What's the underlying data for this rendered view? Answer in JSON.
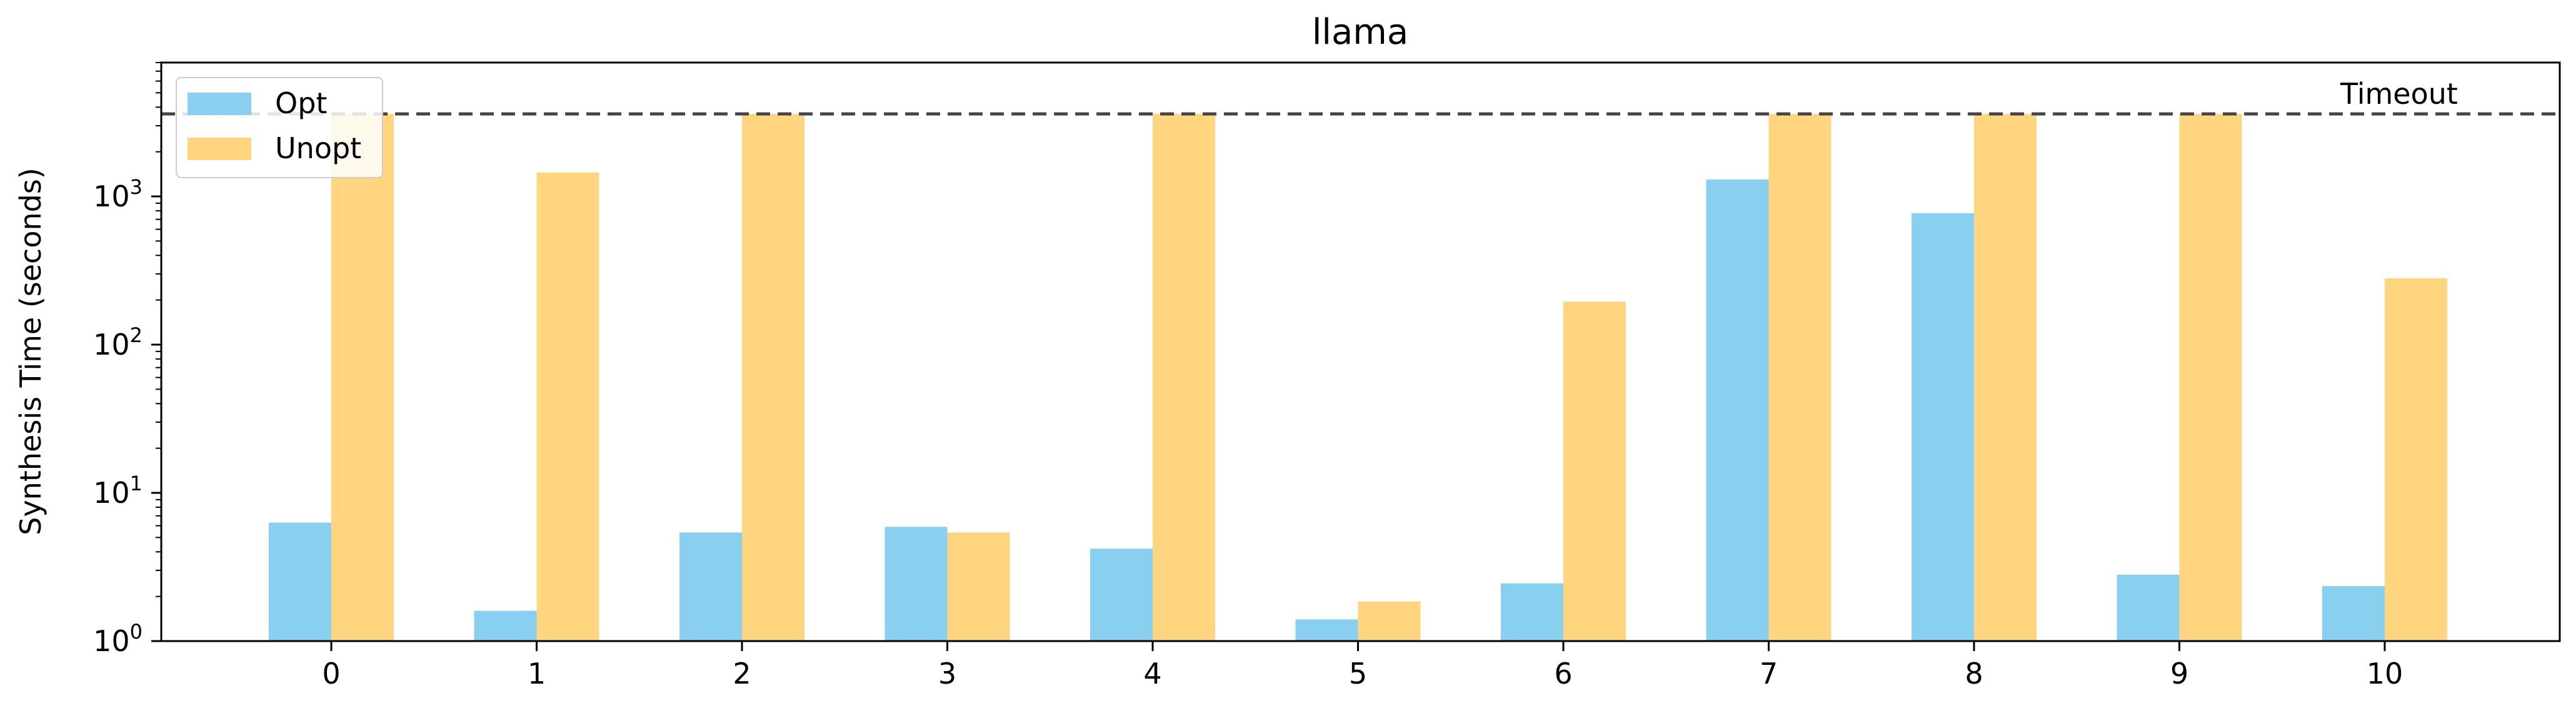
{
  "chart_data": {
    "type": "bar",
    "title": "llama",
    "xlabel": "",
    "ylabel": "Synthesis Time (seconds)",
    "yscale": "log",
    "ylim": [
      1,
      8000
    ],
    "categories": [
      "0",
      "1",
      "2",
      "3",
      "4",
      "5",
      "6",
      "7",
      "8",
      "9",
      "10"
    ],
    "series": [
      {
        "name": "Opt",
        "color": "#89CFF0",
        "values": [
          6.3,
          1.6,
          5.4,
          5.9,
          4.2,
          1.4,
          2.45,
          1300,
          770,
          2.8,
          2.35
        ]
      },
      {
        "name": "Unopt",
        "color": "#FFD580",
        "values": [
          3600,
          1450,
          3600,
          5.4,
          3600,
          1.85,
          195,
          3600,
          3600,
          3600,
          280
        ]
      }
    ],
    "y_ticks": [
      {
        "value": 1,
        "label": "10^0"
      },
      {
        "value": 10,
        "label": "10^1"
      },
      {
        "value": 100,
        "label": "10^2"
      },
      {
        "value": 1000,
        "label": "10^3"
      }
    ],
    "reference_line": {
      "value": 3600,
      "label": "Timeout",
      "style": "dashed",
      "color": "#444444"
    },
    "legend": {
      "position": "top-left"
    },
    "grid": false
  }
}
